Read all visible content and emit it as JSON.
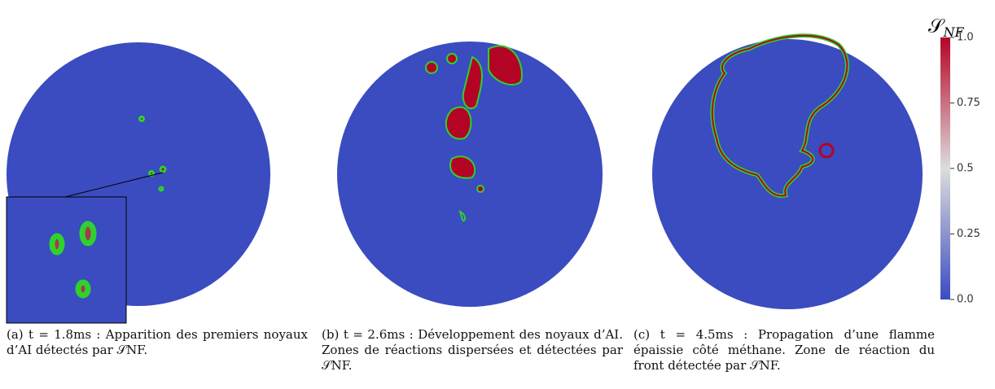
{
  "colorbar": {
    "title": {
      "symbol": "𝒮",
      "subscript": "NF"
    },
    "ticks": [
      {
        "value": 0,
        "label": "0.0"
      },
      0.25,
      0.5,
      0.75,
      {
        "value": 1,
        "label": "1.0"
      }
    ],
    "lim": [
      0,
      1
    ]
  },
  "panels": [
    {
      "label": "(a)",
      "caption": "t = 1.8ms : Apparition des premiers noyaux d’AI détectés par 𝒮NF."
    },
    {
      "label": "(b)",
      "caption": "t = 2.6ms : Développement des noyaux d’AI. Zones de réactions dispersées et détectées par 𝒮NF."
    },
    {
      "label": "(c)",
      "caption": "t = 4.5ms : Propagation d’une flamme épaissie côté méthane. Zone de réaction du front détectée par 𝒮NF."
    }
  ]
}
